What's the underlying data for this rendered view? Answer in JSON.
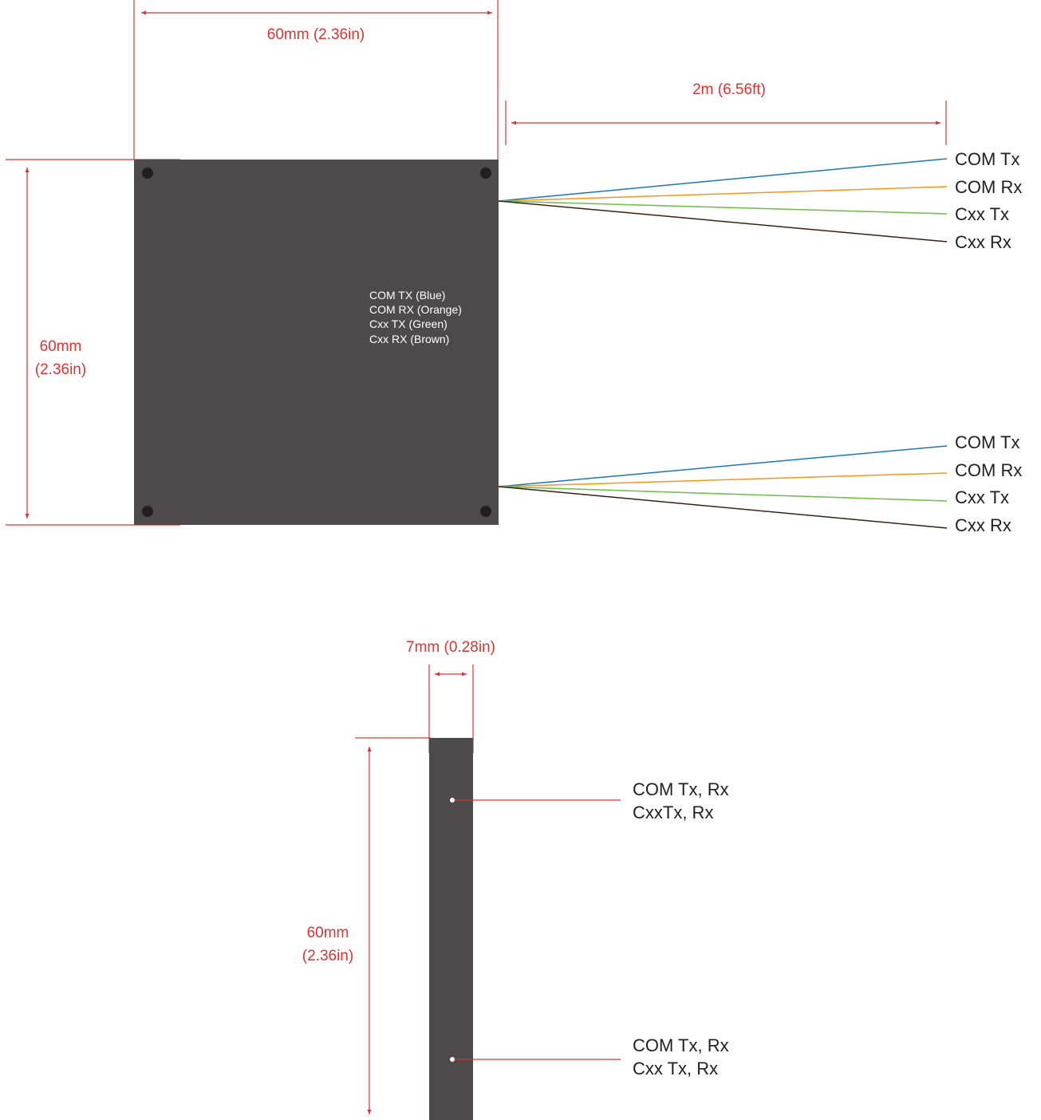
{
  "colors": {
    "body": "#4d4a4b",
    "dimension": "#e0312f",
    "hole": "#231f20",
    "wire_blue": "#1b75bc",
    "wire_orange": "#f7941d",
    "wire_green": "#6abd45",
    "wire_brown": "#3c1e0f"
  },
  "front_view": {
    "width_dimension": "60mm (2.36in)",
    "height_dimension": [
      "60mm",
      "(2.36in)"
    ],
    "cable_length_dimension": "2m (6.56ft)",
    "legend": [
      "COM TX (Blue)",
      "COM RX (Orange)",
      "Cxx TX (Green)",
      "Cxx RX (Brown)"
    ],
    "top_cable": {
      "wires": [
        {
          "label": "COM Tx",
          "color": "wire_blue"
        },
        {
          "label": "COM Rx",
          "color": "wire_orange"
        },
        {
          "label": "Cxx Tx",
          "color": "wire_green"
        },
        {
          "label": "Cxx Rx",
          "color": "wire_brown"
        }
      ]
    },
    "bottom_cable": {
      "wires": [
        {
          "label": "COM Tx",
          "color": "wire_blue"
        },
        {
          "label": "COM Rx",
          "color": "wire_orange"
        },
        {
          "label": "Cxx Tx",
          "color": "wire_green"
        },
        {
          "label": "Cxx Rx",
          "color": "wire_brown"
        }
      ]
    }
  },
  "side_view": {
    "thickness_dimension": "7mm (0.28in)",
    "height_dimension": [
      "60mm",
      "(2.36in)"
    ],
    "top_port_label": [
      "COM Tx, Rx",
      "CxxTx, Rx"
    ],
    "bottom_port_label": [
      "COM Tx, Rx",
      "Cxx Tx, Rx"
    ]
  }
}
